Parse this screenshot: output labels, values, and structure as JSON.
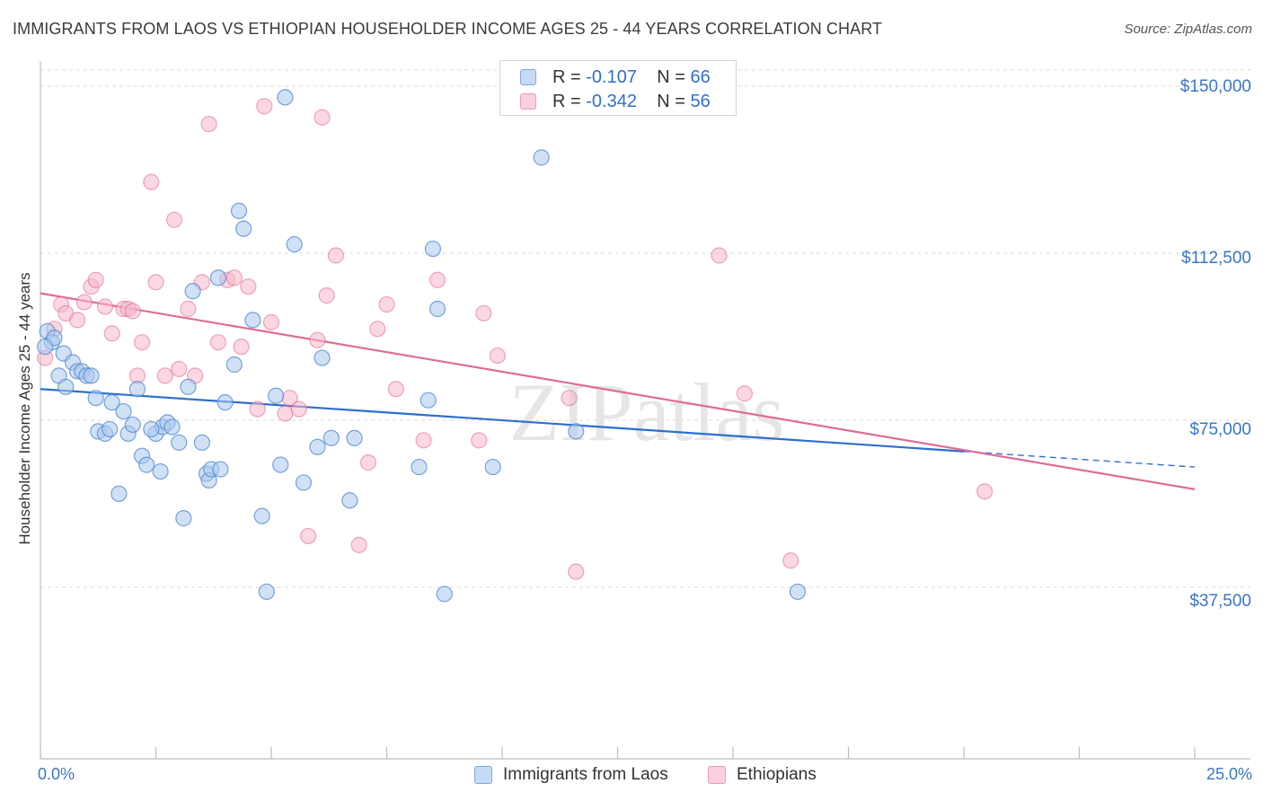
{
  "title": "IMMIGRANTS FROM LAOS VS ETHIOPIAN HOUSEHOLDER INCOME AGES 25 - 44 YEARS CORRELATION CHART",
  "source": "Source: ZipAtlas.com",
  "watermark": "ZIPatlas",
  "legend": {
    "rows": [
      {
        "r_label": "R = ",
        "r_value": "-0.107",
        "n_label": "N = ",
        "n_value": "66",
        "color": "#a9c8ef"
      },
      {
        "r_label": "R = ",
        "r_value": "-0.342",
        "n_label": "N = ",
        "n_value": "56",
        "color": "#f5b6c9"
      }
    ]
  },
  "bottom_legend": [
    {
      "label": "Immigrants from Laos",
      "color": "#a9c8ef"
    },
    {
      "label": "Ethiopians",
      "color": "#f5b6c9"
    }
  ],
  "chart_data": {
    "type": "scatter",
    "title": "IMMIGRANTS FROM LAOS VS ETHIOPIAN HOUSEHOLDER INCOME AGES 25 - 44 YEARS CORRELATION CHART",
    "xlabel": "",
    "ylabel": "Householder Income Ages 25 - 44 years",
    "xlim": [
      0,
      25
    ],
    "ylim": [
      0,
      153000
    ],
    "x_tick_labels": [
      "0.0%",
      "25.0%"
    ],
    "y_ticks": [
      37500,
      75000,
      112500,
      150000
    ],
    "y_tick_labels": [
      "$37,500",
      "$75,000",
      "$112,500",
      "$150,000"
    ],
    "grid": true,
    "colors": {
      "laos": "#4f86d0",
      "laos_fill": "#a9c8ef",
      "eth": "#e0668f",
      "eth_fill": "#f5b6c9",
      "laos_line": "#2e6fcf",
      "eth_line": "#e06b96"
    },
    "series": [
      {
        "name": "Immigrants from Laos",
        "color": "#4f86d0",
        "points": [
          [
            0.15,
            95000
          ],
          [
            0.25,
            92500
          ],
          [
            0.3,
            93500
          ],
          [
            0.4,
            85000
          ],
          [
            0.5,
            90000
          ],
          [
            0.55,
            82500
          ],
          [
            0.7,
            88000
          ],
          [
            0.8,
            86000
          ],
          [
            0.9,
            86000
          ],
          [
            1.0,
            85000
          ],
          [
            1.1,
            85000
          ],
          [
            1.2,
            80000
          ],
          [
            1.25,
            72500
          ],
          [
            1.4,
            72000
          ],
          [
            1.5,
            73000
          ],
          [
            1.55,
            79000
          ],
          [
            1.8,
            77000
          ],
          [
            1.9,
            72000
          ],
          [
            2.0,
            74000
          ],
          [
            2.1,
            82000
          ],
          [
            2.2,
            67000
          ],
          [
            2.3,
            65000
          ],
          [
            2.5,
            72000
          ],
          [
            2.6,
            63500
          ],
          [
            2.65,
            73500
          ],
          [
            2.75,
            74500
          ],
          [
            2.85,
            73500
          ],
          [
            3.0,
            70000
          ],
          [
            3.1,
            53000
          ],
          [
            3.2,
            82500
          ],
          [
            3.3,
            104000
          ],
          [
            3.5,
            70000
          ],
          [
            3.6,
            63000
          ],
          [
            3.65,
            61500
          ],
          [
            3.7,
            64000
          ],
          [
            3.85,
            107000
          ],
          [
            4.0,
            79000
          ],
          [
            4.2,
            87500
          ],
          [
            4.3,
            122000
          ],
          [
            4.4,
            118000
          ],
          [
            4.6,
            97500
          ],
          [
            4.8,
            53500
          ],
          [
            4.9,
            36500
          ],
          [
            5.1,
            80500
          ],
          [
            5.2,
            65000
          ],
          [
            5.3,
            147500
          ],
          [
            5.5,
            114500
          ],
          [
            5.7,
            61000
          ],
          [
            6.0,
            69000
          ],
          [
            6.1,
            89000
          ],
          [
            6.3,
            71000
          ],
          [
            6.7,
            57000
          ],
          [
            6.8,
            71000
          ],
          [
            8.2,
            64500
          ],
          [
            8.4,
            79500
          ],
          [
            8.5,
            113500
          ],
          [
            8.6,
            100000
          ],
          [
            8.75,
            36000
          ],
          [
            9.8,
            64500
          ],
          [
            10.85,
            134000
          ],
          [
            11.6,
            72500
          ],
          [
            16.4,
            36500
          ],
          [
            0.1,
            91500
          ],
          [
            1.7,
            58500
          ],
          [
            2.4,
            73000
          ],
          [
            3.9,
            64000
          ]
        ]
      },
      {
        "name": "Ethiopians",
        "color": "#e0668f",
        "points": [
          [
            0.1,
            89000
          ],
          [
            0.3,
            95500
          ],
          [
            0.45,
            101000
          ],
          [
            0.55,
            99000
          ],
          [
            0.8,
            97500
          ],
          [
            0.95,
            101500
          ],
          [
            1.1,
            105000
          ],
          [
            1.2,
            106500
          ],
          [
            1.4,
            100500
          ],
          [
            1.55,
            94500
          ],
          [
            1.8,
            100000
          ],
          [
            1.9,
            100000
          ],
          [
            2.0,
            99500
          ],
          [
            2.1,
            85000
          ],
          [
            2.2,
            92500
          ],
          [
            2.4,
            128500
          ],
          [
            2.5,
            106000
          ],
          [
            2.7,
            85000
          ],
          [
            2.9,
            120000
          ],
          [
            3.0,
            86500
          ],
          [
            3.2,
            100000
          ],
          [
            3.35,
            85000
          ],
          [
            3.5,
            106000
          ],
          [
            3.65,
            141500
          ],
          [
            3.85,
            92500
          ],
          [
            4.05,
            106500
          ],
          [
            4.2,
            107000
          ],
          [
            4.35,
            91500
          ],
          [
            4.5,
            105000
          ],
          [
            4.7,
            77500
          ],
          [
            4.85,
            145500
          ],
          [
            5.0,
            97000
          ],
          [
            5.3,
            76500
          ],
          [
            5.4,
            80000
          ],
          [
            5.6,
            77500
          ],
          [
            5.8,
            49000
          ],
          [
            6.0,
            93000
          ],
          [
            6.2,
            103000
          ],
          [
            6.4,
            112000
          ],
          [
            6.9,
            47000
          ],
          [
            7.1,
            65500
          ],
          [
            7.3,
            95500
          ],
          [
            7.5,
            101000
          ],
          [
            7.7,
            82000
          ],
          [
            8.3,
            70500
          ],
          [
            8.6,
            106500
          ],
          [
            9.5,
            70500
          ],
          [
            9.6,
            99000
          ],
          [
            9.9,
            89500
          ],
          [
            11.45,
            80000
          ],
          [
            11.6,
            41000
          ],
          [
            14.7,
            112000
          ],
          [
            15.25,
            81000
          ],
          [
            16.25,
            43500
          ],
          [
            20.45,
            59000
          ],
          [
            6.1,
            143000
          ]
        ]
      }
    ],
    "trendlines": [
      {
        "series": "Immigrants from Laos",
        "x": [
          0,
          20.0
        ],
        "y": [
          82000,
          68000
        ],
        "dashed_extension_x": [
          20.0,
          25
        ],
        "dashed_extension_y": [
          68000,
          64500
        ]
      },
      {
        "series": "Ethiopians",
        "x": [
          0,
          25
        ],
        "y": [
          103500,
          59500
        ]
      }
    ]
  }
}
